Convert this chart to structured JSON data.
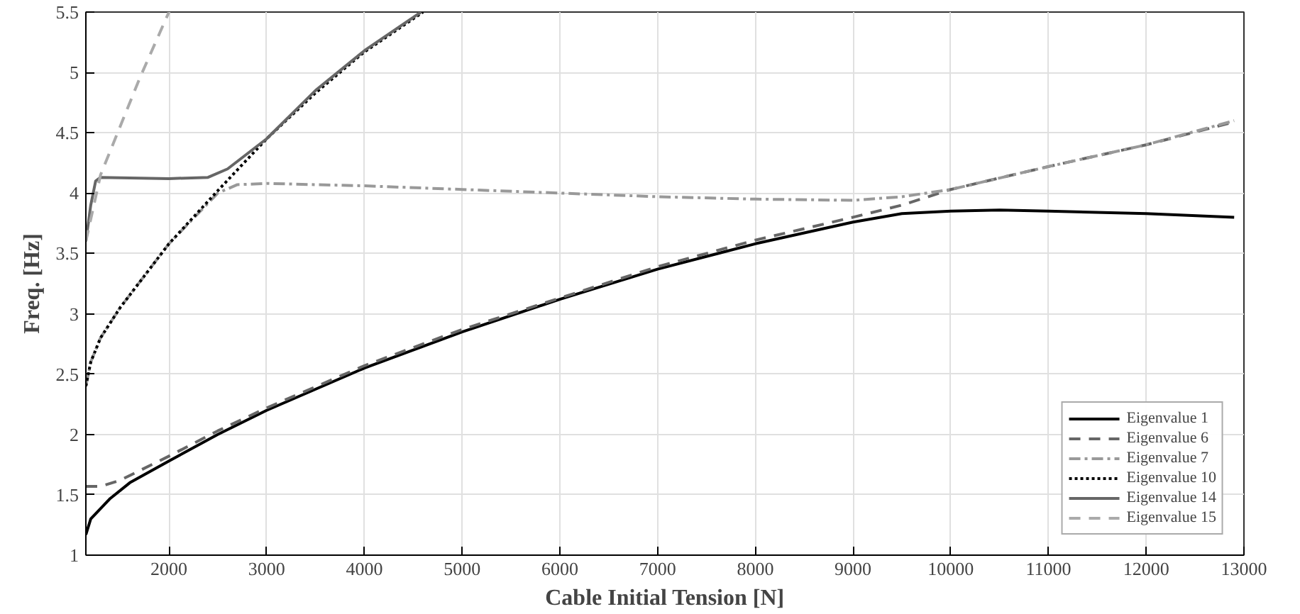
{
  "chart_data": {
    "type": "line",
    "xlabel": "Cable Initial Tension [N]",
    "ylabel": "Freq. [Hz]",
    "xlim": [
      1150,
      13000
    ],
    "ylim": [
      1,
      5.5
    ],
    "xticks": [
      2000,
      3000,
      4000,
      5000,
      6000,
      7000,
      8000,
      9000,
      10000,
      11000,
      12000,
      13000
    ],
    "yticks": [
      1,
      1.5,
      2,
      2.5,
      3,
      3.5,
      4,
      4.5,
      5,
      5.5
    ],
    "grid": true,
    "legend": "bottom right",
    "marker": "none",
    "series": [
      {
        "name": "Eigenvalue 1",
        "color": "#000000",
        "line_style": "solid",
        "x": [
          1150,
          1200,
          1400,
          1600,
          2000,
          2500,
          3000,
          4000,
          5000,
          6000,
          7000,
          8000,
          9000,
          9500,
          10000,
          10500,
          11000,
          12000,
          12900
        ],
        "values": [
          1.17,
          1.3,
          1.47,
          1.6,
          1.78,
          2.0,
          2.2,
          2.55,
          2.85,
          3.12,
          3.37,
          3.58,
          3.76,
          3.83,
          3.85,
          3.86,
          3.85,
          3.83,
          3.8
        ]
      },
      {
        "name": "Eigenvalue 6",
        "color": "#666666",
        "line_style": "dashed",
        "x": [
          1150,
          1300,
          1500,
          2000,
          2500,
          3000,
          4000,
          5000,
          6000,
          7000,
          8000,
          9000,
          9500,
          10000,
          11000,
          12000,
          12900
        ],
        "values": [
          1.57,
          1.57,
          1.62,
          1.82,
          2.03,
          2.22,
          2.57,
          2.87,
          3.13,
          3.39,
          3.61,
          3.8,
          3.9,
          4.03,
          4.22,
          4.4,
          4.59
        ]
      },
      {
        "name": "Eigenvalue 7",
        "color": "#999999",
        "line_style": "dashdot",
        "x": [
          1150,
          1200,
          1300,
          1500,
          2000,
          2500,
          2700,
          3000,
          4000,
          5000,
          6000,
          7000,
          8000,
          9000,
          9500,
          10000,
          11000,
          12000,
          12900
        ],
        "values": [
          2.4,
          2.6,
          2.8,
          3.05,
          3.58,
          4.0,
          4.07,
          4.08,
          4.06,
          4.03,
          4.0,
          3.97,
          3.95,
          3.94,
          3.97,
          4.03,
          4.22,
          4.4,
          4.6
        ]
      },
      {
        "name": "Eigenvalue 10",
        "color": "#000000",
        "line_style": "dotted",
        "x": [
          1150,
          1200,
          1300,
          1500,
          2000,
          2500,
          3000,
          3500,
          4000,
          4600
        ],
        "values": [
          2.4,
          2.6,
          2.8,
          3.05,
          3.58,
          4.02,
          4.45,
          4.83,
          5.17,
          5.5
        ]
      },
      {
        "name": "Eigenvalue 14",
        "color": "#666666",
        "line_style": "solid",
        "x": [
          1150,
          1200,
          1250,
          1300,
          2000,
          2400,
          2600,
          3000,
          3500,
          4000,
          4580
        ],
        "values": [
          3.6,
          3.9,
          4.1,
          4.13,
          4.12,
          4.13,
          4.2,
          4.45,
          4.85,
          5.18,
          5.5
        ]
      },
      {
        "name": "Eigenvalue 15",
        "color": "#aaaaaa",
        "line_style": "dashed",
        "x": [
          1150,
          1300,
          1500,
          1700,
          2000
        ],
        "values": [
          3.6,
          4.15,
          4.55,
          4.95,
          5.5
        ]
      }
    ]
  }
}
